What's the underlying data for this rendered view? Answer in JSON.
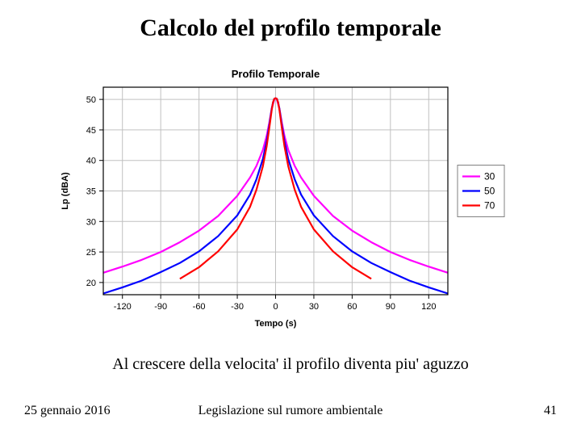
{
  "slide_title": "Calcolo del profilo temporale",
  "caption": "Al crescere della velocita' il profilo diventa piu' aguzzo",
  "footer": {
    "date": "25 gennaio 2016",
    "center": "Legislazione sul rumore ambientale",
    "page": "41"
  },
  "chart": {
    "type": "line",
    "title": "Profilo Temporale",
    "title_fontsize": 13,
    "title_weight": "bold",
    "xlabel": "Tempo (s)",
    "ylabel": "Lp (dBA)",
    "label_fontsize": 11,
    "label_weight": "bold",
    "tick_fontsize": 11,
    "xlim": [
      -135,
      135
    ],
    "ylim": [
      18,
      52
    ],
    "xticks": [
      -120,
      -90,
      -60,
      -30,
      0,
      30,
      60,
      90,
      120
    ],
    "yticks": [
      20,
      25,
      30,
      35,
      40,
      45,
      50
    ],
    "border_color": "#000000",
    "grid_color": "#c0c0c0",
    "background_color": "#ffffff",
    "line_width": 2.2,
    "series": [
      {
        "label": "30",
        "color": "#ff00ff",
        "x": [
          -135,
          -120,
          -105,
          -90,
          -75,
          -60,
          -45,
          -30,
          -20,
          -15,
          -10,
          -7,
          -5,
          -3,
          -1,
          0,
          1,
          3,
          5,
          7,
          10,
          15,
          20,
          30,
          45,
          60,
          75,
          90,
          105,
          120,
          135
        ],
        "y": [
          21.6,
          22.6,
          23.7,
          25.0,
          26.6,
          28.5,
          30.9,
          34.2,
          37.2,
          39.1,
          41.7,
          44.0,
          46.1,
          48.5,
          50.0,
          50.2,
          50.0,
          48.5,
          46.1,
          44.0,
          41.7,
          39.1,
          37.2,
          34.2,
          30.9,
          28.5,
          26.6,
          25.0,
          23.7,
          22.6,
          21.6
        ]
      },
      {
        "label": "50",
        "color": "#0000ff",
        "x": [
          -135,
          -120,
          -105,
          -90,
          -75,
          -60,
          -45,
          -30,
          -20,
          -15,
          -10,
          -7,
          -5,
          -3,
          -2,
          -1,
          0,
          1,
          2,
          3,
          5,
          7,
          10,
          15,
          20,
          30,
          45,
          60,
          75,
          90,
          105,
          120,
          135
        ],
        "y": [
          18.2,
          19.2,
          20.3,
          21.7,
          23.2,
          25.1,
          27.6,
          31.0,
          34.4,
          36.9,
          40.2,
          43.1,
          45.7,
          48.5,
          49.5,
          50.1,
          50.2,
          50.1,
          49.5,
          48.5,
          45.7,
          43.1,
          40.2,
          36.9,
          34.4,
          31.0,
          27.6,
          25.1,
          23.2,
          21.7,
          20.3,
          19.2,
          18.2
        ]
      },
      {
        "label": "70",
        "color": "#ff0000",
        "x": [
          -75,
          -60,
          -45,
          -30,
          -20,
          -15,
          -10,
          -7,
          -5,
          -3,
          -2,
          -1,
          0,
          1,
          2,
          3,
          5,
          7,
          10,
          15,
          20,
          30,
          45,
          60,
          75
        ],
        "y": [
          20.6,
          22.5,
          25.1,
          28.7,
          32.4,
          35.2,
          39.0,
          42.3,
          45.2,
          48.3,
          49.5,
          50.1,
          50.2,
          50.1,
          49.5,
          48.3,
          45.2,
          42.3,
          39.0,
          35.2,
          32.4,
          28.7,
          25.1,
          22.5,
          20.6
        ]
      }
    ],
    "legend": {
      "border_color": "#808080",
      "bg_color": "#ffffff",
      "fontsize": 12,
      "swatch_len": 22
    }
  }
}
